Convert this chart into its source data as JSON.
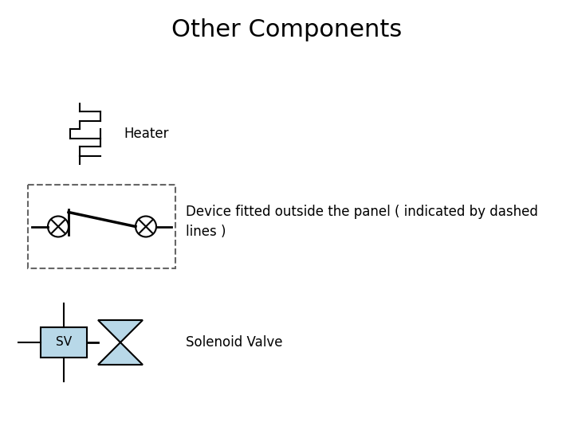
{
  "title": "Other Components",
  "title_fontsize": 22,
  "background_color": "#ffffff",
  "label_fontsize": 12,
  "label_color": "#000000",
  "symbol_color": "#000000",
  "sv_fill": "#b8d8e8",
  "sv_border": "#000000",
  "heater_label": "Heater",
  "device_label": "Device fitted outside the panel ( indicated by dashed\nlines )",
  "solenoid_label": "Solenoid Valve"
}
